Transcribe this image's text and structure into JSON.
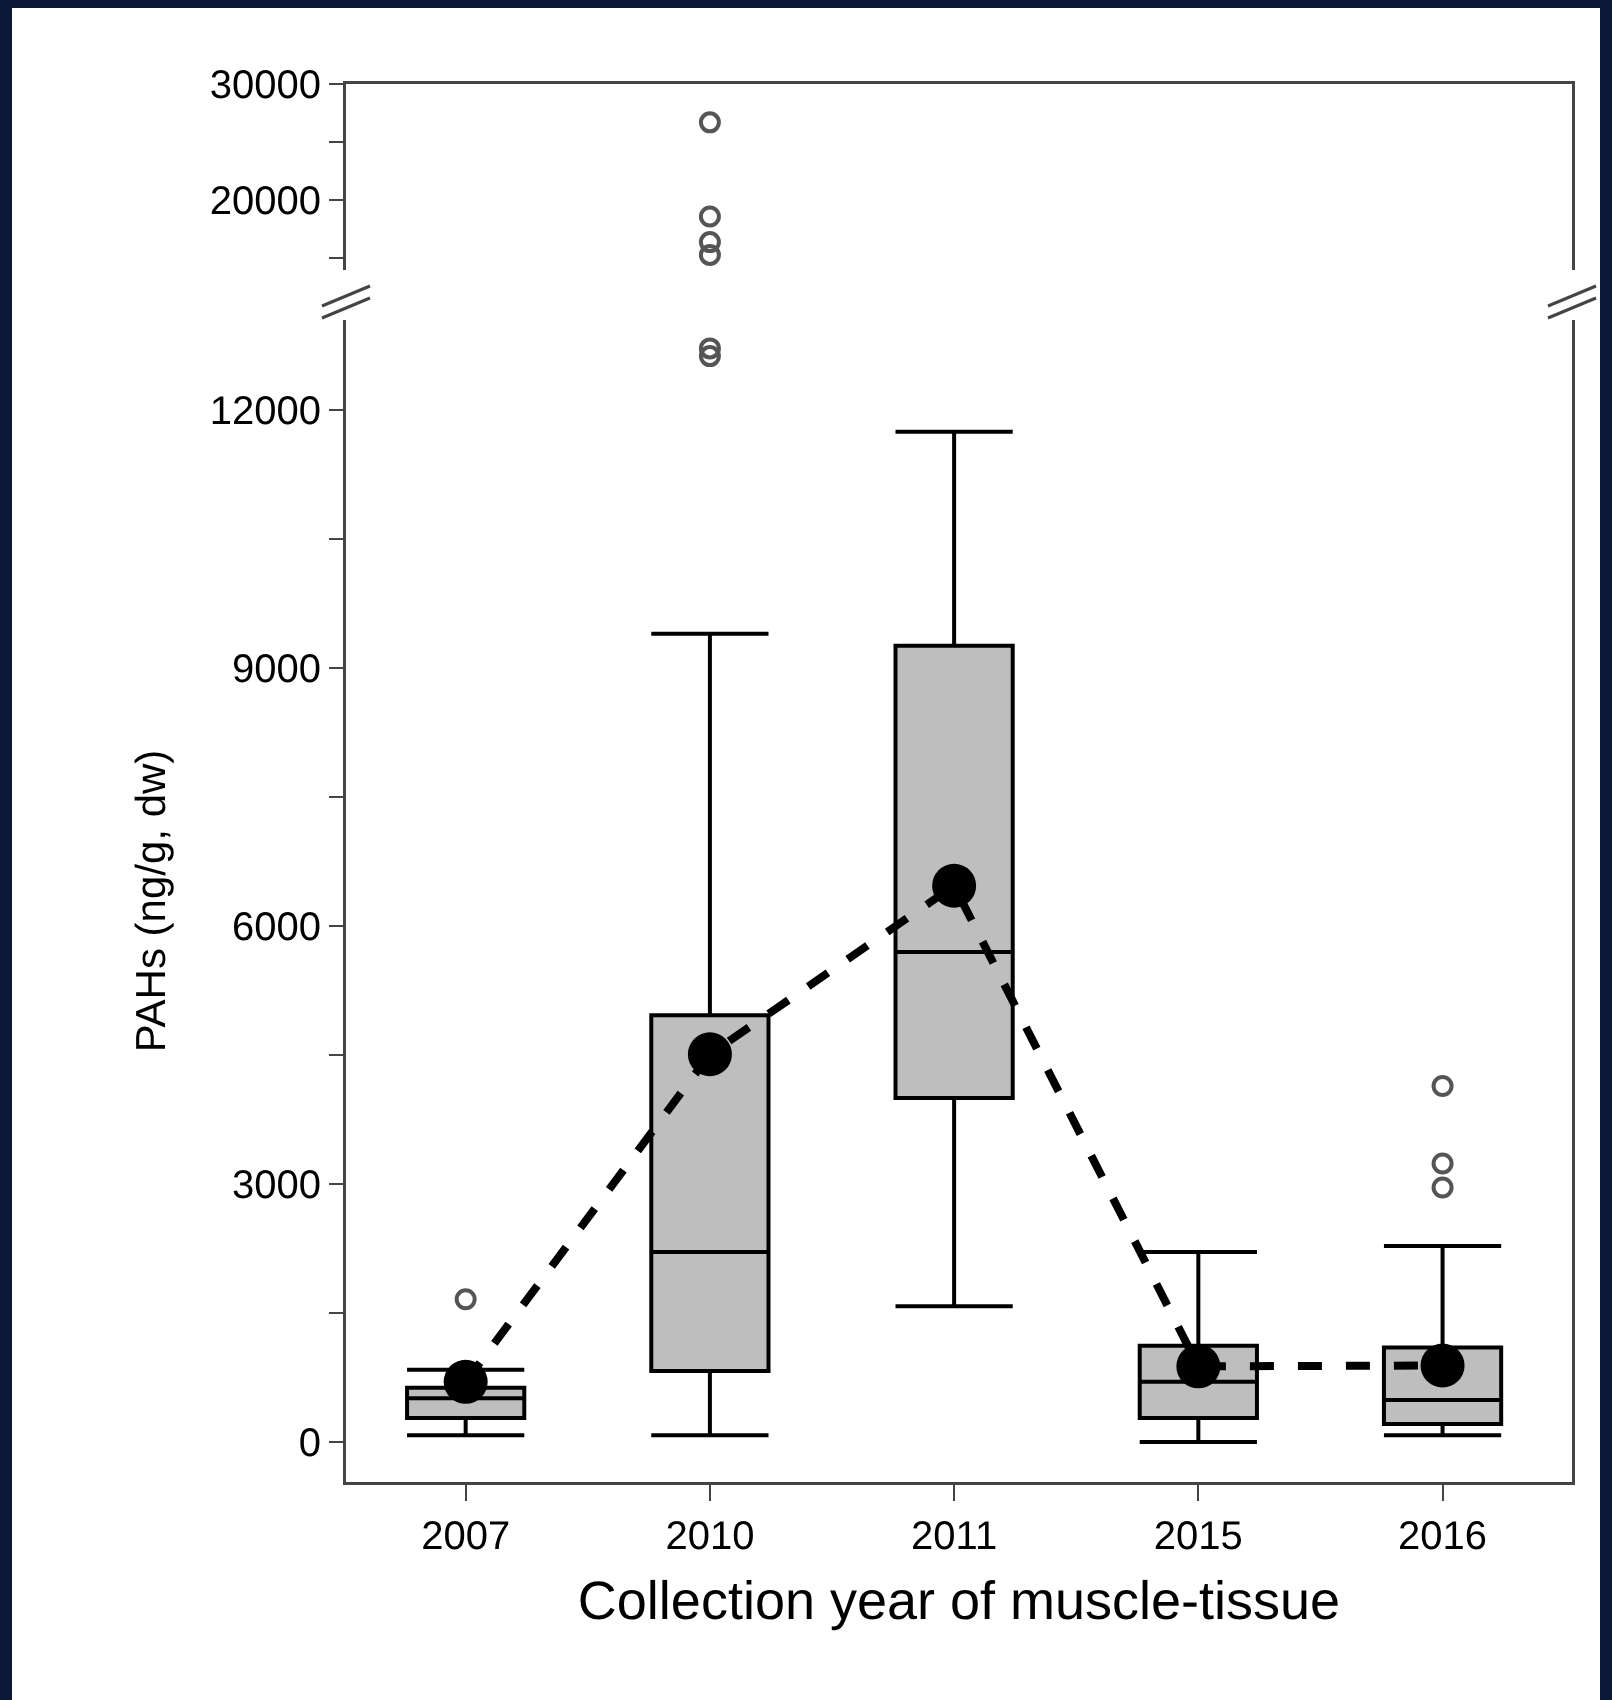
{
  "chart_data": [
    {
      "type": "scatter",
      "categories": [
        "2007",
        "2010",
        "2011",
        "2015",
        "2016"
      ],
      "ylim": [
        14000,
        30000
      ],
      "yticks": [
        {
          "value": 15000,
          "label": null
        },
        20000,
        {
          "value": 25000,
          "label": null
        },
        30000
      ],
      "tick_labels": "y",
      "grid": false,
      "series": [
        {
          "color": "#555555",
          "marker": "circle",
          "values": [
            null,
            26700,
            null,
            null,
            null
          ]
        },
        {
          "color": "#555555",
          "marker": "circle",
          "values": [
            null,
            18600,
            null,
            null,
            null
          ]
        },
        {
          "color": "#555555",
          "marker": "circle",
          "values": [
            null,
            16400,
            null,
            null,
            null
          ]
        },
        {
          "color": "#555555",
          "marker": "circle",
          "values": [
            null,
            15300,
            null,
            null,
            null
          ]
        }
      ]
    },
    {
      "type": "box",
      "categories": [
        "2007",
        "2010",
        "2011",
        "2015",
        "2016"
      ],
      "xlabel": "Collection year of muscle-tissue",
      "ylabel": "PAHs (ng/g, dw)",
      "ylim": [
        -465,
        13050
      ],
      "yticks": [
        0,
        {
          "value": 1500,
          "label": null
        },
        3000,
        {
          "value": 4500,
          "label": null
        },
        6000,
        {
          "value": 7500,
          "label": null
        },
        9000,
        {
          "value": 10500,
          "label": null
        },
        12000
      ],
      "grid": false,
      "series": [
        {
          "color": "#bebebe",
          "boxes": [
            {
              "low": 80,
              "q1": 280,
              "median": 510,
              "q3": 630,
              "high": 840,
              "outliers": [
                1660
              ]
            },
            {
              "low": 80,
              "q1": 825,
              "median": 2210,
              "q3": 4965,
              "high": 9400,
              "outliers": [
                12720,
                12630
              ]
            },
            {
              "low": 1580,
              "q1": 4000,
              "median": 5700,
              "q3": 9260,
              "high": 11750
            },
            {
              "low": 0,
              "q1": 280,
              "median": 700,
              "q3": 1120,
              "high": 2210
            },
            {
              "low": 80,
              "q1": 210,
              "median": 490,
              "q3": 1100,
              "high": 2280,
              "outliers": [
                4140,
                3240,
                2960
              ]
            }
          ]
        },
        {
          "type": "line",
          "color": "#000000",
          "marker": "circle",
          "line_style": "dashed",
          "values": [
            700,
            4510,
            6470,
            880,
            890
          ]
        }
      ]
    }
  ]
}
